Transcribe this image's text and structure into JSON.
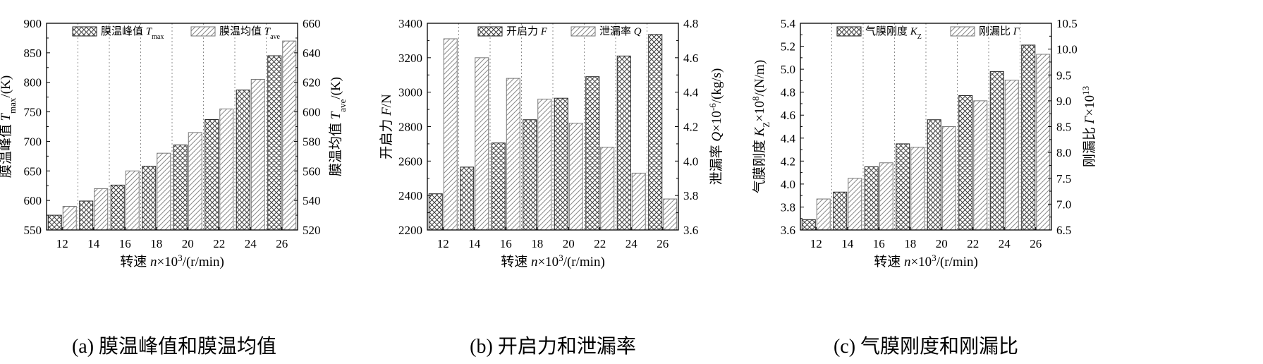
{
  "chart_data": [
    {
      "type": "bar",
      "categories": [
        "12",
        "14",
        "16",
        "18",
        "20",
        "22",
        "24",
        "26"
      ],
      "series": [
        {
          "name": "膜温峰值 Tmax",
          "axis": "left",
          "pattern": "crosshatch",
          "values": [
            575,
            599,
            626,
            658,
            694,
            737,
            787,
            845
          ]
        },
        {
          "name": "膜温均值 Tave",
          "axis": "right",
          "pattern": "diagonal",
          "values": [
            536,
            548,
            560,
            572,
            586,
            602,
            622,
            648
          ]
        }
      ],
      "legend": [
        {
          "label": "膜温峰值 ",
          "sym": "T",
          "sub": "max"
        },
        {
          "label": "膜温均值 ",
          "sym": "T",
          "sub": "ave"
        }
      ],
      "xlabel": {
        "pre": "转速 ",
        "sym": "n",
        "mid": "×10",
        "sup": "3",
        "post": "/(r/min)"
      },
      "ylabel_left": {
        "pre": "膜温峰值 ",
        "sym": "T",
        "sub": "max",
        "post": "/(K)"
      },
      "ylabel_right": {
        "pre": "膜温均值 ",
        "sym": "T",
        "sub": "ave",
        "post": "/(K)"
      },
      "ylim_left": [
        550,
        900
      ],
      "yticks_left": [
        550,
        600,
        650,
        700,
        750,
        800,
        850,
        900
      ],
      "ydec_left": 0,
      "ylim_right": [
        520,
        660
      ],
      "yticks_right": [
        520,
        540,
        560,
        580,
        600,
        620,
        640,
        660
      ],
      "ydec_right": 0,
      "grid": "vertical dashed",
      "legend_position": "top",
      "caption": "(a) 膜温峰值和膜温均值"
    },
    {
      "type": "bar",
      "categories": [
        "12",
        "14",
        "16",
        "18",
        "20",
        "22",
        "24",
        "26"
      ],
      "series": [
        {
          "name": "开启力 F",
          "axis": "left",
          "pattern": "crosshatch",
          "values": [
            2410,
            2565,
            2705,
            2840,
            2965,
            3090,
            3210,
            3335
          ]
        },
        {
          "name": "泄漏率 Q",
          "axis": "right",
          "pattern": "diagonal",
          "values": [
            4.71,
            4.6,
            4.48,
            4.36,
            4.22,
            4.08,
            3.93,
            3.78
          ]
        }
      ],
      "legend": [
        {
          "label": "开启力 ",
          "sym": "F",
          "sub": ""
        },
        {
          "label": "泄漏率 ",
          "sym": "Q",
          "sub": ""
        }
      ],
      "xlabel": {
        "pre": "转速 ",
        "sym": "n",
        "mid": "×10",
        "sup": "3",
        "post": "/(r/min)"
      },
      "ylabel_left": {
        "pre": "开启力 ",
        "sym": "F",
        "sub": "",
        "post": "/N"
      },
      "ylabel_right": {
        "pre": "泄漏率 ",
        "sym": "Q",
        "mid": "×10",
        "sup": "-6",
        "post": "/(kg/s)"
      },
      "ylim_left": [
        2200,
        3400
      ],
      "yticks_left": [
        2200,
        2400,
        2600,
        2800,
        3000,
        3200,
        3400
      ],
      "ydec_left": 0,
      "ylim_right": [
        3.6,
        4.8
      ],
      "yticks_right": [
        3.6,
        3.8,
        4.0,
        4.2,
        4.4,
        4.6,
        4.8
      ],
      "ydec_right": 1,
      "grid": "vertical dashed",
      "legend_position": "top",
      "caption": "(b) 开启力和泄漏率"
    },
    {
      "type": "bar",
      "categories": [
        "12",
        "14",
        "16",
        "18",
        "20",
        "22",
        "24",
        "26"
      ],
      "series": [
        {
          "name": "气膜刚度 KZ",
          "axis": "left",
          "pattern": "crosshatch",
          "values": [
            3.69,
            3.93,
            4.15,
            4.35,
            4.56,
            4.77,
            4.98,
            5.21
          ]
        },
        {
          "name": "刚漏比 Γ",
          "axis": "right",
          "pattern": "diagonal",
          "values": [
            7.1,
            7.5,
            7.8,
            8.1,
            8.5,
            9.0,
            9.4,
            9.9
          ]
        }
      ],
      "legend": [
        {
          "label": "气膜刚度 ",
          "sym": "K",
          "sub": "Z"
        },
        {
          "label": "刚漏比 ",
          "sym": "Γ",
          "sub": ""
        }
      ],
      "xlabel": {
        "pre": "转速 ",
        "sym": "n",
        "mid": "×10",
        "sup": "3",
        "post": "/(r/min)"
      },
      "ylabel_left": {
        "pre": "气膜刚度 ",
        "sym": "K",
        "sub": "Z",
        "mid": "×10",
        "sup": "8",
        "post": "/(N/m)"
      },
      "ylabel_right": {
        "pre": "刚漏比 ",
        "sym": "Γ",
        "mid": "×10",
        "sup": "13",
        "post": ""
      },
      "ylim_left": [
        3.6,
        5.4
      ],
      "yticks_left": [
        3.6,
        3.8,
        4.0,
        4.2,
        4.4,
        4.6,
        4.8,
        5.0,
        5.2,
        5.4
      ],
      "ydec_left": 1,
      "ylim_right": [
        6.5,
        10.5
      ],
      "yticks_right": [
        6.5,
        7.0,
        7.5,
        8.0,
        8.5,
        9.0,
        9.5,
        10.0,
        10.5
      ],
      "ydec_right": 1,
      "grid": "vertical dashed",
      "legend_position": "top",
      "caption": "(c) 气膜刚度和刚漏比"
    }
  ]
}
